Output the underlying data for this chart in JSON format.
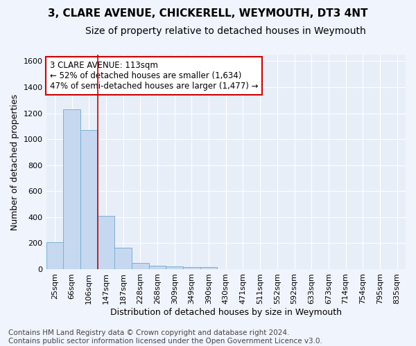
{
  "title": "3, CLARE AVENUE, CHICKERELL, WEYMOUTH, DT3 4NT",
  "subtitle": "Size of property relative to detached houses in Weymouth",
  "xlabel": "Distribution of detached houses by size in Weymouth",
  "ylabel": "Number of detached properties",
  "footer_line1": "Contains HM Land Registry data © Crown copyright and database right 2024.",
  "footer_line2": "Contains public sector information licensed under the Open Government Licence v3.0.",
  "bar_labels": [
    "25sqm",
    "66sqm",
    "106sqm",
    "147sqm",
    "187sqm",
    "228sqm",
    "268sqm",
    "309sqm",
    "349sqm",
    "390sqm",
    "430sqm",
    "471sqm",
    "511sqm",
    "552sqm",
    "592sqm",
    "633sqm",
    "673sqm",
    "714sqm",
    "754sqm",
    "795sqm",
    "835sqm"
  ],
  "bar_values": [
    205,
    1230,
    1070,
    410,
    165,
    47,
    27,
    20,
    15,
    15,
    0,
    0,
    0,
    0,
    0,
    0,
    0,
    0,
    0,
    0,
    0
  ],
  "bar_color": "#c5d8f0",
  "bar_edge_color": "#7bafd4",
  "background_color": "#f0f4fc",
  "plot_bg_color": "#e8eef8",
  "grid_color": "#ffffff",
  "vline_x": 2.5,
  "vline_color": "#cc0000",
  "annotation_text": "3 CLARE AVENUE: 113sqm\n← 52% of detached houses are smaller (1,634)\n47% of semi-detached houses are larger (1,477) →",
  "annotation_box_color": "#ffffff",
  "annotation_box_edgecolor": "#cc0000",
  "ylim": [
    0,
    1650
  ],
  "yticks": [
    0,
    200,
    400,
    600,
    800,
    1000,
    1200,
    1400,
    1600
  ],
  "title_fontsize": 11,
  "subtitle_fontsize": 10,
  "xlabel_fontsize": 9,
  "ylabel_fontsize": 9,
  "tick_fontsize": 8,
  "annotation_fontsize": 8.5,
  "footer_fontsize": 7.5
}
